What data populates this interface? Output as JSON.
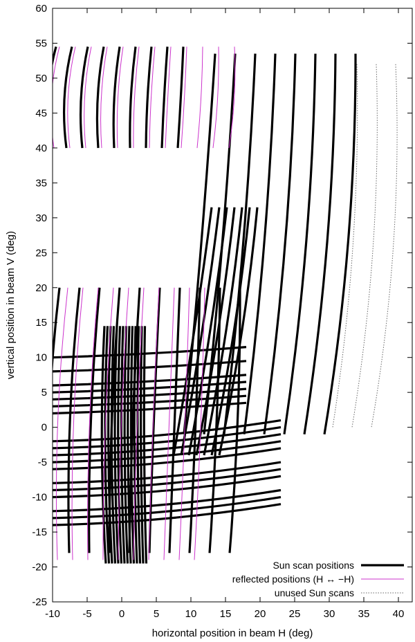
{
  "chart_data": {
    "type": "line",
    "title": "",
    "xlabel": "horizontal position in beam   H   (deg)",
    "ylabel": "vertical position in beam   V   (deg)",
    "xlim": [
      -10,
      42
    ],
    "ylim": [
      -25,
      60
    ],
    "xticks": [
      -10,
      -5,
      0,
      5,
      10,
      15,
      20,
      25,
      30,
      35,
      40
    ],
    "yticks": [
      -25,
      -20,
      -15,
      -10,
      -5,
      0,
      5,
      10,
      15,
      20,
      25,
      30,
      35,
      40,
      45,
      50,
      55,
      60
    ],
    "grid": false,
    "legend_position": "bottom-right",
    "series": [
      {
        "name": "Sun scan positions",
        "color": "#000000",
        "style": "solid-thick",
        "groups": [
          {
            "vmax": 54.5,
            "vmin": 40,
            "hmin": -9.5,
            "hmax": 11,
            "spacing": 2.3,
            "tilt": -0.8
          },
          {
            "vmax": 53.5,
            "vmin": -1,
            "hmin": 13.5,
            "hmax": 35.5,
            "spacing": 2.9,
            "tilt": -4.5
          },
          {
            "vmax": 20,
            "vmin": -18,
            "hmin": -9,
            "hmax": 18,
            "spacing": 2.9,
            "tilt": -1.5
          },
          {
            "vmax": 31.5,
            "vmin": -4,
            "hmin": 13,
            "hmax": 20,
            "spacing": 1.1,
            "tilt": -5.5
          },
          {
            "vmax": 14.5,
            "vmin": -19.5,
            "hmin": -2.5,
            "hmax": 3.5,
            "spacing": 0.45,
            "tilt": 0.2
          }
        ],
        "horizontal_groups": [
          {
            "v": [
              10,
              8,
              6,
              5,
              4,
              3,
              2
            ],
            "hmin": -10,
            "hmax": 18
          },
          {
            "v": [
              -2,
              -3,
              -4,
              -5,
              -6,
              -8,
              -9,
              -10,
              -12,
              -13,
              -14
            ],
            "hmin": -10,
            "hmax": 23
          }
        ]
      },
      {
        "name": "reflected positions (H ↔ −H)",
        "color": "#cc33cc",
        "style": "solid-thin",
        "groups": [
          {
            "vmax": 54.5,
            "vmin": 40,
            "hmin": -9,
            "hmax": 17.5,
            "spacing": 2.3,
            "tilt": -0.8
          },
          {
            "vmax": 20,
            "vmin": -19,
            "hmin": -10,
            "hmax": 12,
            "spacing": 2.2,
            "tilt": -1.5
          }
        ]
      },
      {
        "name": "unused Sun scans",
        "color": "#666666",
        "style": "dotted",
        "groups": [
          {
            "vmax": 52,
            "vmin": 0,
            "hmin": 34,
            "hmax": 42,
            "spacing": 2.8,
            "tilt": -3.5
          }
        ]
      }
    ]
  }
}
